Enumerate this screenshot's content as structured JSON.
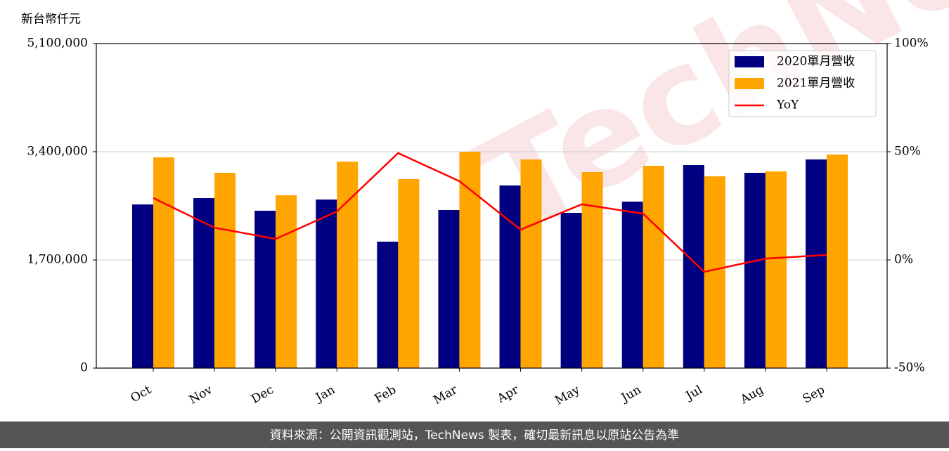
{
  "chart_data": {
    "type": "bar-line",
    "y_label": "新台幣仟元",
    "categories": [
      "Oct",
      "Nov",
      "Dec",
      "Jan",
      "Feb",
      "Mar",
      "Apr",
      "May",
      "Jun",
      "Jul",
      "Aug",
      "Sep"
    ],
    "series": [
      {
        "name": "2020單月營收",
        "color": "#000080",
        "type": "bar",
        "values": [
          2572000,
          2671000,
          2473000,
          2649000,
          1987000,
          2484000,
          2870000,
          2440000,
          2616000,
          3190000,
          3069000,
          3279000
        ]
      },
      {
        "name": "2021單月營收",
        "color": "#ffa500",
        "type": "bar",
        "values": [
          3312000,
          3069000,
          2716000,
          3245000,
          2970000,
          3400000,
          3279000,
          3080000,
          3179000,
          3014000,
          3091000,
          3356000
        ]
      },
      {
        "name": "YoY",
        "color": "#ff0000",
        "type": "line",
        "axis": "y2",
        "values": [
          28.6,
          14.9,
          9.7,
          22.4,
          49.4,
          36.4,
          14.0,
          25.7,
          21.4,
          -5.5,
          0.6,
          2.3
        ]
      }
    ],
    "ylim": [
      0,
      5100000
    ],
    "yticks": [
      0,
      {
        "value": 1700000,
        "label": "1,700,000"
      },
      {
        "value": 3400000,
        "label": "3,400,000"
      },
      {
        "value": 5100000,
        "label": "5,100,000"
      }
    ],
    "y2lim": [
      -50,
      100
    ],
    "y2ticks": [
      {
        "value": -50,
        "label": "-50%"
      },
      {
        "value": 0,
        "label": "0%"
      },
      {
        "value": 50,
        "label": "50%"
      },
      {
        "value": 100,
        "label": "100%"
      }
    ],
    "grid": true,
    "legend": "upper right",
    "watermark": "TechNews",
    "footer": "資料來源：公開資訊觀測站，TechNews 製表，確切最新訊息以原站公告為準"
  }
}
